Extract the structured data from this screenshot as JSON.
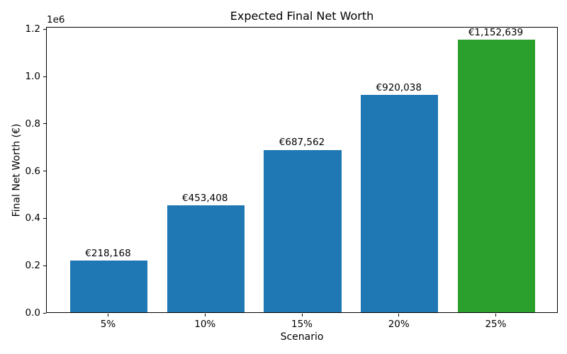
{
  "chart_data": {
    "type": "bar",
    "title": "Expected Final Net Worth",
    "xlabel": "Scenario",
    "ylabel": "Final Net Worth (€)",
    "offset_text": "1e6",
    "categories": [
      "5%",
      "10%",
      "15%",
      "20%",
      "25%"
    ],
    "values": [
      218168,
      453408,
      687562,
      920038,
      1152639
    ],
    "bar_labels": [
      "€218,168",
      "€453,408",
      "€687,562",
      "€920,038",
      "€1,152,639"
    ],
    "bar_colors": [
      "#1f77b4",
      "#1f77b4",
      "#1f77b4",
      "#1f77b4",
      "#2ca02c"
    ],
    "ylim": [
      0,
      1210271
    ],
    "ytick_values": [
      0,
      200000,
      400000,
      600000,
      800000,
      1000000,
      1200000
    ],
    "ytick_labels": [
      "0.0",
      "0.2",
      "0.4",
      "0.6",
      "0.8",
      "1.0",
      "1.2"
    ],
    "grid": false,
    "legend": "none",
    "spines": "all"
  }
}
